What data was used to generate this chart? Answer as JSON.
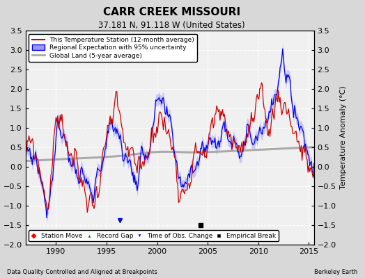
{
  "title": "CARR CREEK MISSOURI",
  "subtitle": "37.181 N, 91.118 W (United States)",
  "ylabel": "Temperature Anomaly (°C)",
  "xlabel_left": "Data Quality Controlled and Aligned at Breakpoints",
  "xlabel_right": "Berkeley Earth",
  "ylim": [
    -2.0,
    3.5
  ],
  "xlim": [
    1987.0,
    2015.5
  ],
  "yticks": [
    -2,
    -1.5,
    -1,
    -0.5,
    0,
    0.5,
    1,
    1.5,
    2,
    2.5,
    3,
    3.5
  ],
  "xticks": [
    1990,
    1995,
    2000,
    2005,
    2010,
    2015
  ],
  "bg_color": "#d8d8d8",
  "plot_bg_color": "#f0f0f0",
  "grid_color": "#ffffff",
  "regional_color": "#0000ee",
  "regional_fill_color": "#9999ff",
  "station_color": "#cc0000",
  "global_color": "#aaaaaa",
  "empirical_break_x": 2004.3,
  "empirical_break_y": -1.5,
  "tobs_change_x": 1996.3,
  "tobs_change_y": -1.38
}
